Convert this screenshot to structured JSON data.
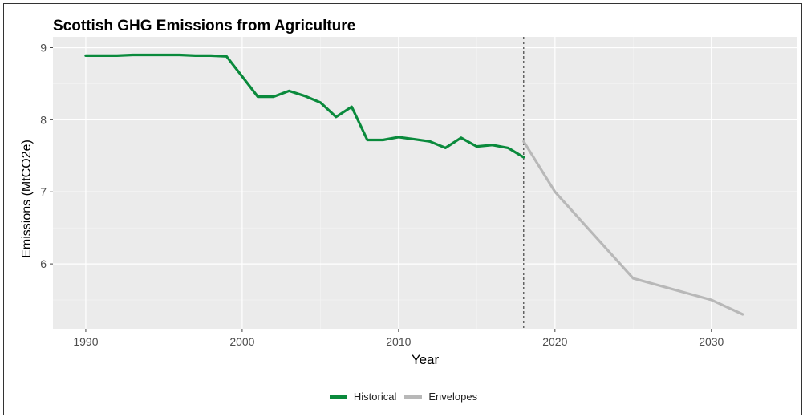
{
  "chart_data": {
    "type": "line",
    "title": "Scottish GHG Emissions from Agriculture",
    "xlabel": "Year",
    "ylabel": "Emissions (MtCO2e)",
    "xlim": [
      1987.9,
      2035.5
    ],
    "ylim": [
      5.1,
      9.15
    ],
    "x_ticks": [
      1990,
      2000,
      2010,
      2020,
      2030
    ],
    "y_ticks": [
      6,
      7,
      8,
      9
    ],
    "grid": true,
    "legend_position": "bottom",
    "reference_line": {
      "x": 2018,
      "style": "dashed"
    },
    "series": [
      {
        "name": "Historical",
        "color": "#0a8a3c",
        "points": [
          [
            1990,
            8.89
          ],
          [
            1991,
            8.89
          ],
          [
            1992,
            8.89
          ],
          [
            1993,
            8.9
          ],
          [
            1994,
            8.9
          ],
          [
            1995,
            8.9
          ],
          [
            1996,
            8.9
          ],
          [
            1997,
            8.89
          ],
          [
            1998,
            8.89
          ],
          [
            1999,
            8.88
          ],
          [
            2000,
            8.6
          ],
          [
            2001,
            8.32
          ],
          [
            2002,
            8.32
          ],
          [
            2003,
            8.4
          ],
          [
            2004,
            8.33
          ],
          [
            2005,
            8.24
          ],
          [
            2006,
            8.04
          ],
          [
            2007,
            8.18
          ],
          [
            2008,
            7.72
          ],
          [
            2009,
            7.72
          ],
          [
            2010,
            7.76
          ],
          [
            2011,
            7.73
          ],
          [
            2012,
            7.7
          ],
          [
            2013,
            7.61
          ],
          [
            2014,
            7.75
          ],
          [
            2015,
            7.63
          ],
          [
            2016,
            7.65
          ],
          [
            2017,
            7.61
          ],
          [
            2018,
            7.48
          ]
        ]
      },
      {
        "name": "Envelopes",
        "color": "#b8b8b8",
        "points": [
          [
            2018,
            7.7
          ],
          [
            2020,
            7.0
          ],
          [
            2025,
            5.8
          ],
          [
            2030,
            5.5
          ],
          [
            2032,
            5.3
          ]
        ]
      }
    ]
  }
}
